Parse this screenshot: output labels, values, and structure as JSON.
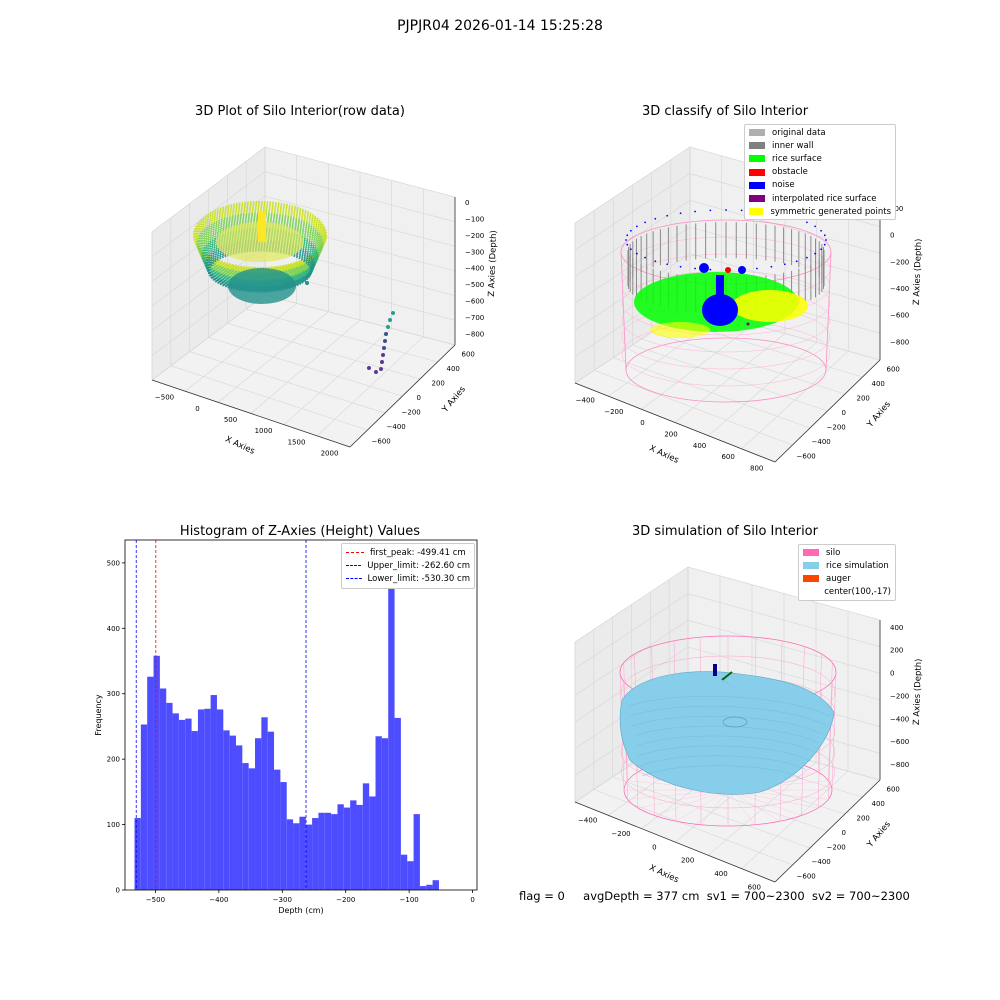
{
  "page": {
    "suptitle": "PJPJR04 2026-01-14 15:25:28",
    "footer": {
      "flag": "flag = 0",
      "avg": "avgDepth = 377 cm",
      "sv1": "sv1 = 700~2300",
      "sv2": "sv2 = 700~2300"
    }
  },
  "colors": {
    "hist_bar": "#4d4dff",
    "peak_line": "#ff0000",
    "limit_line": "#0000ff",
    "silo_wire": "#ff69b4",
    "rice_sim": "#87ceeb",
    "auger": "#ff4500",
    "viridis_high": "#c8e020",
    "viridis_mid": "#21918c",
    "viridis_low": "#3b528b",
    "viridis_dark": "#440154",
    "pane": "#f2f2f2"
  },
  "chart_data": [
    {
      "type": "scatter3d",
      "title": "3D Plot of Silo Interior(row data)",
      "xlabel": "X Axies",
      "ylabel": "Y Axies",
      "zlabel": "Z Axies (Depth)",
      "xticks": [
        "−500",
        "0",
        "500",
        "1000",
        "1500",
        "2000"
      ],
      "yticks": [
        "−600",
        "−400",
        "−200",
        "0",
        "200",
        "400",
        "600"
      ],
      "zticks": [
        "0",
        "−100",
        "−200",
        "−300",
        "−400",
        "−500",
        "−600",
        "−700",
        "−800"
      ],
      "colormap": "viridis"
    },
    {
      "type": "scatter3d",
      "title": "3D classify of Silo Interior",
      "xlabel": "X Axies",
      "ylabel": "Y Axies",
      "zlabel": "Z Axies (Depth)",
      "xticks": [
        "−400",
        "−200",
        "0",
        "200",
        "400",
        "600",
        "800"
      ],
      "yticks": [
        "−600",
        "−400",
        "−200",
        "0",
        "200",
        "400",
        "600"
      ],
      "zticks": [
        "200",
        "0",
        "−200",
        "−400",
        "−600",
        "−800"
      ],
      "legend": [
        {
          "label": "original data",
          "color": "#b0b0b0"
        },
        {
          "label": "inner wall",
          "color": "#808080"
        },
        {
          "label": "rice surface",
          "color": "#00ff00"
        },
        {
          "label": "obstacle",
          "color": "#ff0000"
        },
        {
          "label": "noise",
          "color": "#0000ff"
        },
        {
          "label": "interpolated rice surface",
          "color": "#800080"
        },
        {
          "label": "symmetric generated points",
          "color": "#ffff00"
        }
      ],
      "legend_loc": "upper right"
    },
    {
      "type": "bar",
      "title": "Histogram of Z-Axies (Height) Values",
      "xlabel": "Depth (cm)",
      "ylabel": "Frequency",
      "xlim": [
        -548,
        7
      ],
      "ylim": [
        0,
        535
      ],
      "xticks": [
        -500,
        -400,
        -300,
        -200,
        -100,
        0
      ],
      "xtick_labels": [
        "−500",
        "−400",
        "−300",
        "−200",
        "−100",
        "0"
      ],
      "yticks": [
        0,
        100,
        200,
        300,
        400,
        500
      ],
      "bin_start": -533,
      "bin_width": 10,
      "values": [
        110,
        253,
        326,
        358,
        308,
        286,
        270,
        260,
        262,
        243,
        276,
        277,
        298,
        276,
        244,
        236,
        221,
        194,
        186,
        232,
        264,
        242,
        184,
        165,
        108,
        102,
        112,
        100,
        110,
        118,
        118,
        116,
        131,
        126,
        137,
        130,
        163,
        143,
        235,
        232,
        510,
        263,
        54,
        44,
        116,
        6,
        8,
        15
      ],
      "vlines": [
        {
          "x": -499.41,
          "label": "first_peak: -499.41 cm",
          "color": "#ff0000"
        },
        {
          "x": -262.6,
          "label": "Upper_limit: -262.60 cm",
          "color": "#0000ff"
        },
        {
          "x": -530.3,
          "label": "Lower_limit: -530.30 cm",
          "color": "#0000ff"
        }
      ],
      "legend_loc": "upper right"
    },
    {
      "type": "surface3d",
      "title": "3D simulation of Silo Interior",
      "xlabel": "X Axies",
      "ylabel": "Y Axies",
      "zlabel": "Z Axies (Depth)",
      "xticks": [
        "−400",
        "−200",
        "0",
        "200",
        "400",
        "600"
      ],
      "yticks": [
        "−600",
        "−400",
        "−200",
        "0",
        "200",
        "400",
        "600"
      ],
      "zticks": [
        "400",
        "200",
        "0",
        "−200",
        "−400",
        "−600",
        "−800"
      ],
      "legend": [
        {
          "label": "silo",
          "color": "#ff69b4"
        },
        {
          "label": "rice simulation",
          "color": "#87ceeb"
        },
        {
          "label": "auger",
          "color": "#ff4500"
        },
        {
          "label": "center(100,-17)",
          "color": ""
        }
      ],
      "legend_loc": "upper right"
    }
  ]
}
